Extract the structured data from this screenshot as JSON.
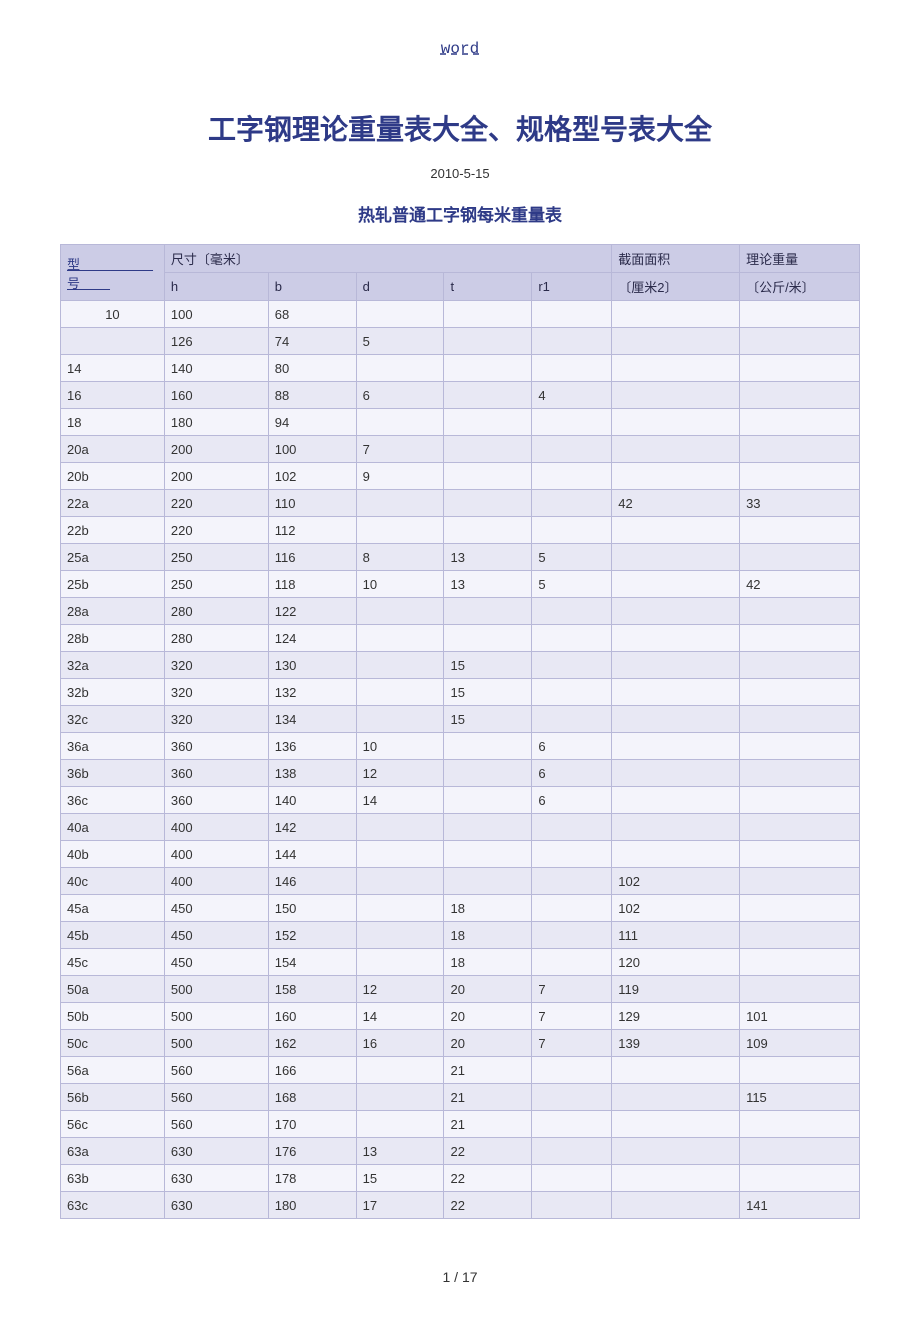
{
  "header_link": "word",
  "main_title": "工字钢理论重量表大全、规格型号表大全",
  "date": "2010-5-15",
  "subtitle": "热轧普通工字钢每米重量表",
  "footer": "1 / 17",
  "table": {
    "header_row1": {
      "model": "型　号",
      "size": "尺寸〔毫米〕",
      "area": "截面面积",
      "weight": "理论重量"
    },
    "header_row2": {
      "h": "h",
      "b": "b",
      "d": "d",
      "t": "t",
      "r1": "r1",
      "area": "〔厘米2〕",
      "weight": "〔公斤/米〕"
    },
    "rows": [
      {
        "model": "10",
        "h": "100",
        "b": "68",
        "d": "",
        "t": "",
        "r1": "",
        "area": "",
        "weight": ""
      },
      {
        "model": "",
        "h": "126",
        "b": "74",
        "d": "5",
        "t": "",
        "r1": "",
        "area": "",
        "weight": ""
      },
      {
        "model": "14",
        "h": "140",
        "b": "80",
        "d": "",
        "t": "",
        "r1": "",
        "area": "",
        "weight": ""
      },
      {
        "model": "16",
        "h": "160",
        "b": "88",
        "d": "6",
        "t": "",
        "r1": "4",
        "area": "",
        "weight": ""
      },
      {
        "model": "18",
        "h": "180",
        "b": "94",
        "d": "",
        "t": "",
        "r1": "",
        "area": "",
        "weight": ""
      },
      {
        "model": "20a",
        "h": "200",
        "b": "100",
        "d": "7",
        "t": "",
        "r1": "",
        "area": "",
        "weight": ""
      },
      {
        "model": "20b",
        "h": "200",
        "b": "102",
        "d": "9",
        "t": "",
        "r1": "",
        "area": "",
        "weight": ""
      },
      {
        "model": "22a",
        "h": "220",
        "b": "110",
        "d": "",
        "t": "",
        "r1": "",
        "area": "42",
        "weight": "33"
      },
      {
        "model": "22b",
        "h": "220",
        "b": "112",
        "d": "",
        "t": "",
        "r1": "",
        "area": "",
        "weight": ""
      },
      {
        "model": "25a",
        "h": "250",
        "b": "116",
        "d": "8",
        "t": "13",
        "r1": "5",
        "area": "",
        "weight": ""
      },
      {
        "model": "25b",
        "h": "250",
        "b": "118",
        "d": "10",
        "t": "13",
        "r1": "5",
        "area": "",
        "weight": "42"
      },
      {
        "model": "28a",
        "h": "280",
        "b": "122",
        "d": "",
        "t": "",
        "r1": "",
        "area": "",
        "weight": ""
      },
      {
        "model": "28b",
        "h": "280",
        "b": "124",
        "d": "",
        "t": "",
        "r1": "",
        "area": "",
        "weight": ""
      },
      {
        "model": "32a",
        "h": "320",
        "b": "130",
        "d": "",
        "t": "15",
        "r1": "",
        "area": "",
        "weight": ""
      },
      {
        "model": "32b",
        "h": "320",
        "b": "132",
        "d": "",
        "t": "15",
        "r1": "",
        "area": "",
        "weight": ""
      },
      {
        "model": "32c",
        "h": "320",
        "b": "134",
        "d": "",
        "t": "15",
        "r1": "",
        "area": "",
        "weight": ""
      },
      {
        "model": "36a",
        "h": "360",
        "b": "136",
        "d": "10",
        "t": "",
        "r1": "6",
        "area": "",
        "weight": ""
      },
      {
        "model": "36b",
        "h": "360",
        "b": "138",
        "d": "12",
        "t": "",
        "r1": "6",
        "area": "",
        "weight": ""
      },
      {
        "model": "36c",
        "h": "360",
        "b": "140",
        "d": "14",
        "t": "",
        "r1": "6",
        "area": "",
        "weight": ""
      },
      {
        "model": "40a",
        "h": "400",
        "b": "142",
        "d": "",
        "t": "",
        "r1": "",
        "area": "",
        "weight": ""
      },
      {
        "model": "40b",
        "h": "400",
        "b": "144",
        "d": "",
        "t": "",
        "r1": "",
        "area": "",
        "weight": ""
      },
      {
        "model": "40c",
        "h": "400",
        "b": "146",
        "d": "",
        "t": "",
        "r1": "",
        "area": "102",
        "weight": ""
      },
      {
        "model": "45a",
        "h": "450",
        "b": "150",
        "d": "",
        "t": "18",
        "r1": "",
        "area": "102",
        "weight": ""
      },
      {
        "model": "45b",
        "h": "450",
        "b": "152",
        "d": "",
        "t": "18",
        "r1": "",
        "area": "111",
        "weight": ""
      },
      {
        "model": "45c",
        "h": "450",
        "b": "154",
        "d": "",
        "t": "18",
        "r1": "",
        "area": "120",
        "weight": ""
      },
      {
        "model": "50a",
        "h": "500",
        "b": "158",
        "d": "12",
        "t": "20",
        "r1": "7",
        "area": "119",
        "weight": ""
      },
      {
        "model": "50b",
        "h": "500",
        "b": "160",
        "d": "14",
        "t": "20",
        "r1": "7",
        "area": "129",
        "weight": "101"
      },
      {
        "model": "50c",
        "h": "500",
        "b": "162",
        "d": "16",
        "t": "20",
        "r1": "7",
        "area": "139",
        "weight": "109"
      },
      {
        "model": "56a",
        "h": "560",
        "b": "166",
        "d": "",
        "t": "21",
        "r1": "",
        "area": "",
        "weight": ""
      },
      {
        "model": "56b",
        "h": "560",
        "b": "168",
        "d": "",
        "t": "21",
        "r1": "",
        "area": "",
        "weight": "115"
      },
      {
        "model": "56c",
        "h": "560",
        "b": "170",
        "d": "",
        "t": "21",
        "r1": "",
        "area": "",
        "weight": ""
      },
      {
        "model": "63a",
        "h": "630",
        "b": "176",
        "d": "13",
        "t": "22",
        "r1": "",
        "area": "",
        "weight": ""
      },
      {
        "model": "63b",
        "h": "630",
        "b": "178",
        "d": "15",
        "t": "22",
        "r1": "",
        "area": "",
        "weight": ""
      },
      {
        "model": "63c",
        "h": "630",
        "b": "180",
        "d": "17",
        "t": "22",
        "r1": "",
        "area": "",
        "weight": "141"
      }
    ]
  }
}
